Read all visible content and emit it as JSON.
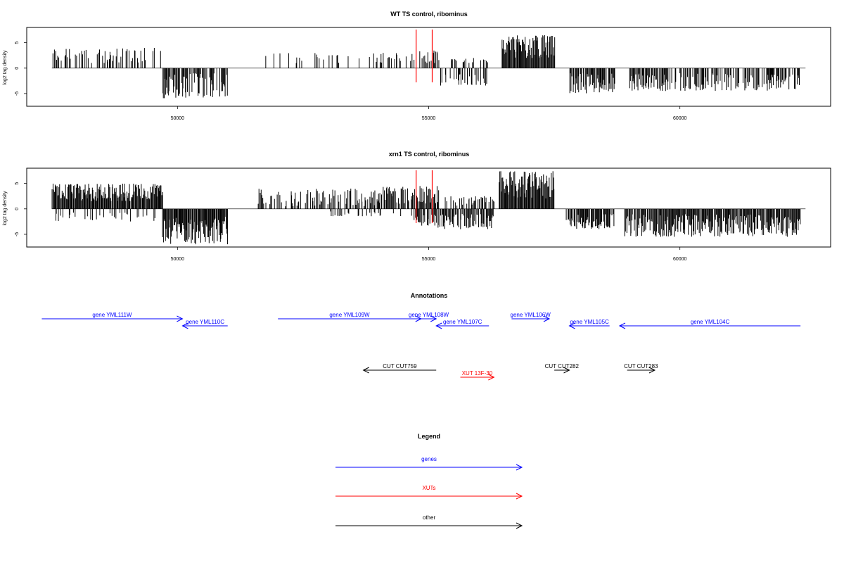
{
  "colors": {
    "gene": "#0000ff",
    "xut": "#ff0000",
    "other": "#000000",
    "marker": "#ff0000"
  },
  "chart_data": [
    {
      "type": "bar",
      "title": "WT TS control, ribominus",
      "ylabel": "log2 tag density",
      "xlim": [
        47000,
        63000
      ],
      "ylim": [
        -7.5,
        8
      ],
      "xticks": [
        50000,
        55000,
        60000
      ],
      "yticks": [
        5,
        0,
        -5
      ],
      "grid": false,
      "baseline": [
        47500,
        62500
      ],
      "markers": [
        54750,
        55070
      ],
      "segments": [
        {
          "from": 47500,
          "to": 49700,
          "sign": 1,
          "min": 1,
          "max": 4,
          "density": 0.38
        },
        {
          "from": 49700,
          "to": 51000,
          "sign": -1,
          "min": 1,
          "max": 6,
          "density": 0.75
        },
        {
          "from": 51700,
          "to": 54000,
          "sign": 1,
          "min": 1,
          "max": 3,
          "density": 0.12
        },
        {
          "from": 54000,
          "to": 54750,
          "sign": 1,
          "min": 1,
          "max": 3,
          "density": 0.4
        },
        {
          "from": 54750,
          "to": 55200,
          "sign": 1,
          "min": 1,
          "max": 3.5,
          "density": 0.45
        },
        {
          "from": 55200,
          "to": 56200,
          "sign": -1,
          "min": 1,
          "max": 3.5,
          "density": 0.35
        },
        {
          "from": 55400,
          "to": 56200,
          "sign": 1,
          "min": 1,
          "max": 2,
          "density": 0.25
        },
        {
          "from": 56450,
          "to": 57500,
          "sign": 1,
          "min": 2,
          "max": 6.5,
          "density": 1
        },
        {
          "from": 57800,
          "to": 58700,
          "sign": -1,
          "min": 1,
          "max": 5,
          "density": 0.8
        },
        {
          "from": 59000,
          "to": 62400,
          "sign": -1,
          "min": 1,
          "max": 4.5,
          "density": 0.65
        }
      ]
    },
    {
      "type": "bar",
      "title": "xrn1 TS control, ribominus",
      "ylabel": "log2 tag density",
      "xlim": [
        47000,
        63000
      ],
      "ylim": [
        -7.5,
        8
      ],
      "xticks": [
        50000,
        55000,
        60000
      ],
      "yticks": [
        5,
        0,
        -5
      ],
      "grid": false,
      "baseline": [
        47500,
        62500
      ],
      "markers": [
        54750,
        55070
      ],
      "segments": [
        {
          "from": 47500,
          "to": 49700,
          "sign": 1,
          "min": 1.5,
          "max": 5,
          "density": 1
        },
        {
          "from": 47500,
          "to": 49700,
          "sign": -1,
          "min": 0.5,
          "max": 2.5,
          "density": 0.2
        },
        {
          "from": 49700,
          "to": 51000,
          "sign": -1,
          "min": 1.5,
          "max": 7,
          "density": 1
        },
        {
          "from": 51600,
          "to": 54000,
          "sign": 1,
          "min": 0.5,
          "max": 4,
          "density": 0.55
        },
        {
          "from": 53000,
          "to": 54700,
          "sign": -1,
          "min": 0.5,
          "max": 1.5,
          "density": 0.2
        },
        {
          "from": 54000,
          "to": 55200,
          "sign": 1,
          "min": 1,
          "max": 4.5,
          "density": 0.8
        },
        {
          "from": 54700,
          "to": 56300,
          "sign": -1,
          "min": 1,
          "max": 4,
          "density": 0.75
        },
        {
          "from": 55300,
          "to": 56300,
          "sign": 1,
          "min": 0.5,
          "max": 2.5,
          "density": 0.4
        },
        {
          "from": 56400,
          "to": 57500,
          "sign": 1,
          "min": 2,
          "max": 7.5,
          "density": 1
        },
        {
          "from": 57700,
          "to": 58700,
          "sign": -1,
          "min": 1,
          "max": 4,
          "density": 0.9
        },
        {
          "from": 58900,
          "to": 62400,
          "sign": -1,
          "min": 1,
          "max": 5.5,
          "density": 0.9
        }
      ]
    }
  ],
  "annotations": {
    "title": "Annotations",
    "items": [
      {
        "label": "gene YML111W",
        "type": "gene",
        "from": 47300,
        "to": 50100,
        "row": 0
      },
      {
        "label": "gene YML110C",
        "type": "gene",
        "from": 51000,
        "to": 50100,
        "row": 1
      },
      {
        "label": "gene YML109W",
        "type": "gene",
        "from": 52000,
        "to": 54850,
        "row": 0
      },
      {
        "label": "gene YML108W",
        "type": "gene",
        "from": 54850,
        "to": 55150,
        "row": 0
      },
      {
        "label": "gene YML107C",
        "type": "gene",
        "from": 56200,
        "to": 55150,
        "row": 1
      },
      {
        "label": "gene YML106W",
        "type": "gene",
        "from": 56650,
        "to": 57400,
        "row": 0
      },
      {
        "label": "gene YML105C",
        "type": "gene",
        "from": 58600,
        "to": 57800,
        "row": 1
      },
      {
        "label": "gene YML104C",
        "type": "gene",
        "from": 62400,
        "to": 58800,
        "row": 1
      },
      {
        "label": "CUT CUT759",
        "type": "other",
        "from": 55150,
        "to": 53700,
        "row": 2
      },
      {
        "label": "CUT CUT282",
        "type": "other",
        "from": 57500,
        "to": 57800,
        "row": 2
      },
      {
        "label": "CUT CUT283",
        "type": "other",
        "from": 58950,
        "to": 59500,
        "row": 2
      },
      {
        "label": "XUT 13F-30",
        "type": "xut",
        "from": 55630,
        "to": 56300,
        "row": 3
      }
    ]
  },
  "legend": {
    "title": "Legend",
    "items": [
      {
        "label": "genes",
        "type": "gene"
      },
      {
        "label": "XUTs",
        "type": "xut"
      },
      {
        "label": "other",
        "type": "other"
      }
    ]
  }
}
